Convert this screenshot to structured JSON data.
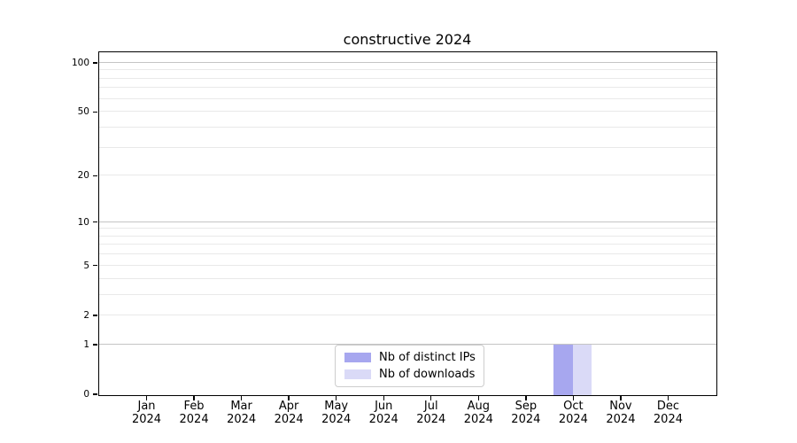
{
  "figure": {
    "background": "#ffffff"
  },
  "chart_data": {
    "type": "bar",
    "title": "constructive 2024",
    "x": {
      "categories": [
        "Jan",
        "Feb",
        "Mar",
        "Apr",
        "May",
        "Jun",
        "Jul",
        "Aug",
        "Sep",
        "Oct",
        "Nov",
        "Dec"
      ],
      "year": "2024"
    },
    "yaxis": {
      "scale": "log1p",
      "labeled_ticks": [
        0,
        1,
        2,
        5,
        10,
        20,
        50,
        100
      ],
      "max": 116,
      "major_grid": [
        1,
        10,
        100
      ],
      "minor_grid": [
        2,
        3,
        4,
        5,
        6,
        7,
        8,
        9,
        20,
        30,
        40,
        50,
        60,
        70,
        80,
        90
      ]
    },
    "series": [
      {
        "name": "Nb of distinct IPs",
        "color": "#a7a7ef",
        "values": [
          0,
          0,
          0,
          0,
          0,
          0,
          0,
          0,
          0,
          1,
          0,
          0
        ]
      },
      {
        "name": "Nb of downloads",
        "color": "#dadaf7",
        "values": [
          0,
          0,
          0,
          0,
          0,
          0,
          0,
          0,
          0,
          1,
          0,
          0
        ]
      }
    ],
    "legend": {
      "position": "bottom-center"
    },
    "colors": {
      "grid_major": "#c4c4c4",
      "grid_minor": "#e9e9e9",
      "spine": "#000000",
      "text": "#000000"
    },
    "ylabel": "",
    "xlabel": ""
  }
}
